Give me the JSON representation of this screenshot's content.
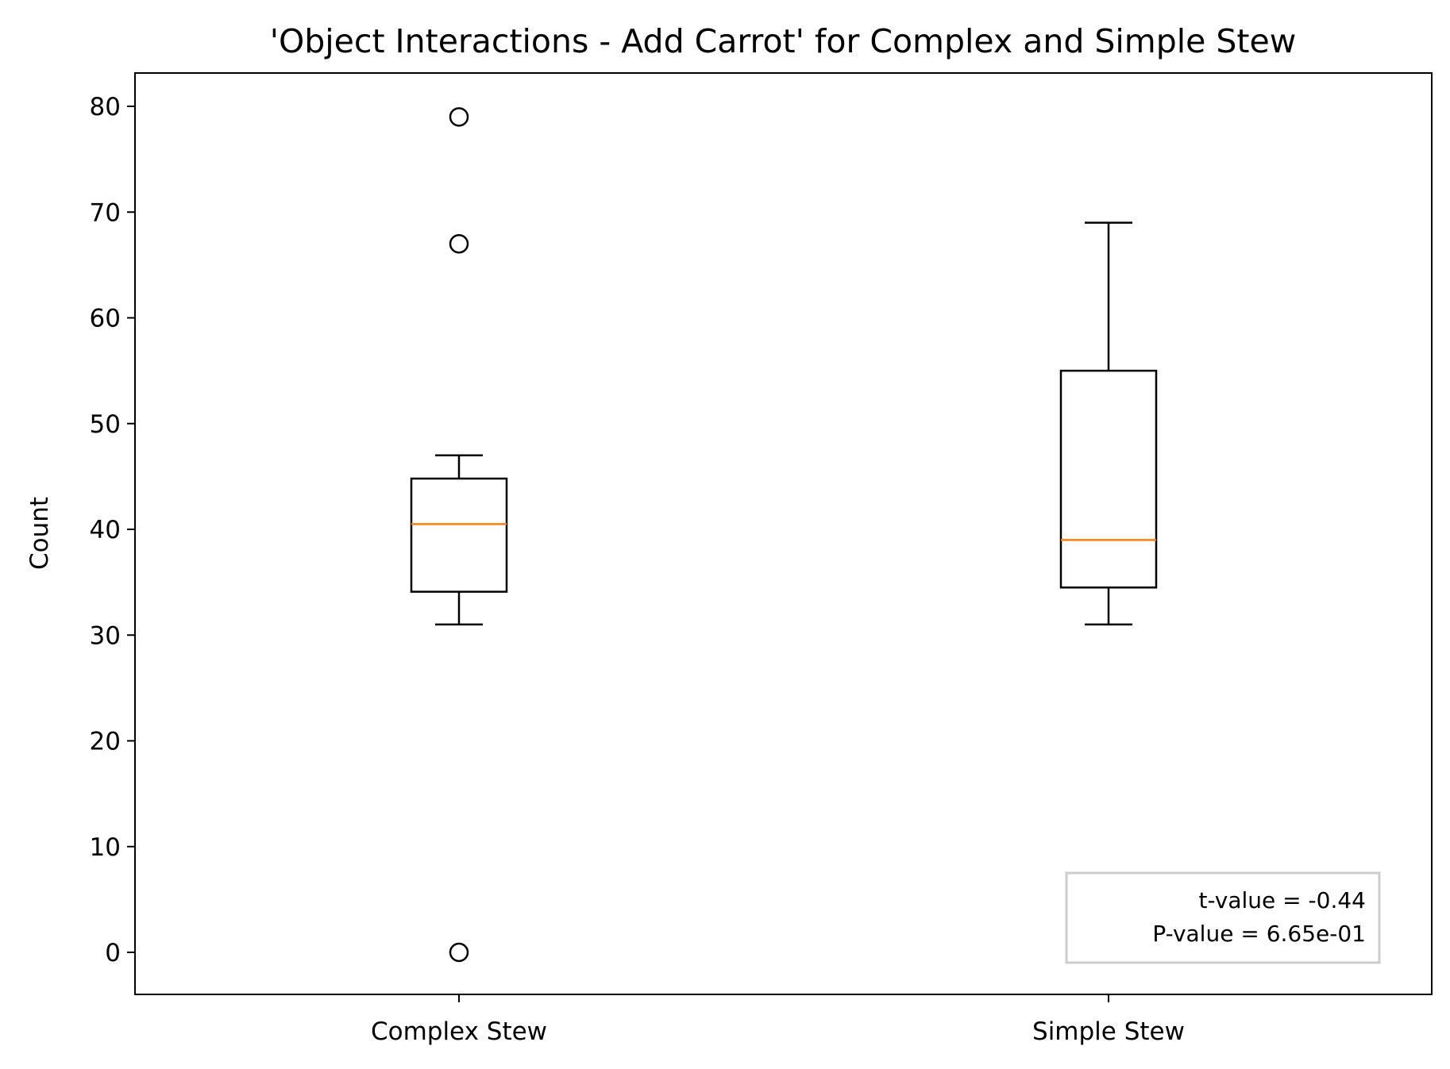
{
  "chart_data": {
    "type": "boxplot",
    "title": "'Object Interactions - Add Carrot' for Complex and Simple Stew",
    "xlabel": "",
    "ylabel": "Count",
    "ylim": [
      -4,
      83
    ],
    "yticks": [
      0,
      10,
      20,
      30,
      40,
      50,
      60,
      70,
      80
    ],
    "categories": [
      "Complex Stew",
      "Simple Stew"
    ],
    "boxes": [
      {
        "category": "Complex Stew",
        "whisker_low": 31,
        "q1": 34.1,
        "median": 40.5,
        "q3": 44.8,
        "whisker_high": 47,
        "outliers": [
          79,
          67,
          0
        ]
      },
      {
        "category": "Simple Stew",
        "whisker_low": 31,
        "q1": 34.5,
        "median": 39,
        "q3": 55,
        "whisker_high": 69,
        "outliers": []
      }
    ],
    "annotation": {
      "line1": "t-value = -0.44",
      "line2": "P-value = 6.65e-01",
      "placement": "bottom-right"
    },
    "grid": false,
    "colors": {
      "median": "#ff7f0e",
      "box": "#000000",
      "annotation_border": "#cccccc"
    }
  }
}
